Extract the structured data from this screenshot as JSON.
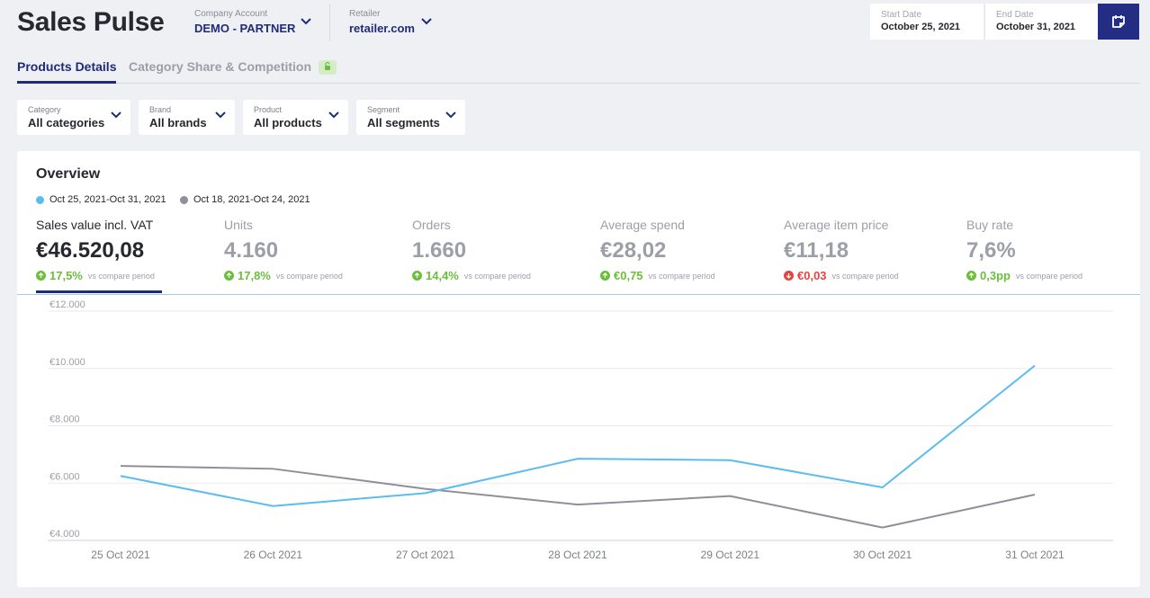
{
  "app": {
    "title": "Sales Pulse"
  },
  "header": {
    "company": {
      "label": "Company Account",
      "value": "DEMO - PARTNER"
    },
    "retailer": {
      "label": "Retailer",
      "value": "retailer.com"
    },
    "start_date": {
      "label": "Start Date",
      "value": "October 25, 2021"
    },
    "end_date": {
      "label": "End Date",
      "value": "October 31, 2021"
    },
    "calendar_icon": "calendar-icon"
  },
  "tabs": [
    {
      "label": "Products Details",
      "active": true
    },
    {
      "label": "Category Share & Competition",
      "active": false,
      "icon": "lock-icon"
    }
  ],
  "filters": [
    {
      "label": "Category",
      "value": "All categories"
    },
    {
      "label": "Brand",
      "value": "All brands"
    },
    {
      "label": "Product",
      "value": "All products"
    },
    {
      "label": "Segment",
      "value": "All segments"
    }
  ],
  "overview": {
    "title": "Overview",
    "legend": [
      {
        "label": "Oct 25, 2021-Oct 31, 2021",
        "color": "#5bbcf0"
      },
      {
        "label": "Oct 18, 2021-Oct 24, 2021",
        "color": "#8f8f9c"
      }
    ],
    "kpis": [
      {
        "name": "Sales value incl. VAT",
        "value": "€46.520,08",
        "delta": "17,5%",
        "direction": "up",
        "vs": "vs compare period",
        "active": true
      },
      {
        "name": "Units",
        "value": "4.160",
        "delta": "17,8%",
        "direction": "up",
        "vs": "vs compare period",
        "active": false
      },
      {
        "name": "Orders",
        "value": "1.660",
        "delta": "14,4%",
        "direction": "up",
        "vs": "vs compare period",
        "active": false
      },
      {
        "name": "Average spend",
        "value": "€28,02",
        "delta": "€0,75",
        "direction": "up",
        "vs": "vs compare period",
        "active": false
      },
      {
        "name": "Average item price",
        "value": "€11,18",
        "delta": "€0,03",
        "direction": "down",
        "vs": "vs compare period",
        "active": false
      },
      {
        "name": "Buy rate",
        "value": "7,6%",
        "delta": "0,3pp",
        "direction": "up",
        "vs": "vs compare period",
        "active": false
      }
    ],
    "colors": {
      "up": "#6bbf3b",
      "down": "#e8413f",
      "accent": "#1f2b7a"
    }
  },
  "chart_data": {
    "type": "line",
    "categories": [
      "25 Oct 2021",
      "26 Oct 2021",
      "27 Oct 2021",
      "28 Oct 2021",
      "29 Oct 2021",
      "30 Oct 2021",
      "31 Oct 2021"
    ],
    "series": [
      {
        "name": "Oct 25, 2021-Oct 31, 2021",
        "color": "#5bbcf0",
        "values": [
          6250,
          5200,
          5650,
          6850,
          6800,
          5850,
          10100
        ]
      },
      {
        "name": "Oct 18, 2021-Oct 24, 2021",
        "color": "#8f8f9c",
        "values": [
          6600,
          6500,
          5800,
          5250,
          5550,
          4450,
          5600
        ]
      }
    ],
    "yticks": [
      4000,
      6000,
      8000,
      10000,
      12000
    ],
    "ytick_labels": [
      "€4.000",
      "€6.000",
      "€8.000",
      "€10.000",
      "€12.000"
    ],
    "ylim": [
      4000,
      12000
    ],
    "grid": true
  }
}
